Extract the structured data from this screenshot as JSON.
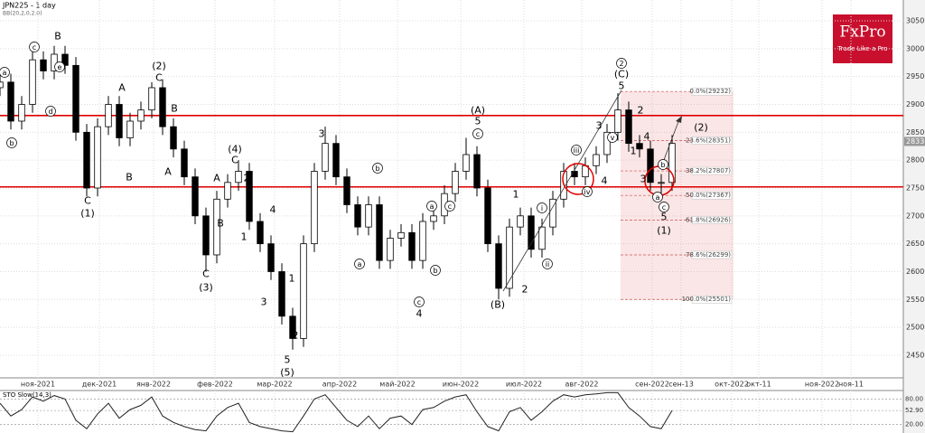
{
  "chart_data": {
    "type": "candlestick",
    "title": "JPN225 - 1 day",
    "indicator": "BB(20,2,0,2.0)",
    "x": [
      0,
      3,
      6,
      9,
      12,
      15,
      18,
      21,
      24,
      27,
      30,
      33,
      36,
      39,
      42,
      45,
      48,
      51,
      54,
      57,
      60,
      63,
      66,
      69,
      72,
      75,
      78,
      81,
      84,
      87,
      90,
      93,
      96,
      99,
      102,
      105,
      108,
      111,
      114,
      117,
      120,
      123,
      126,
      129,
      132,
      135,
      138,
      141,
      144,
      147,
      150,
      153,
      156,
      159,
      162,
      165,
      168,
      171,
      174,
      177,
      180,
      183,
      186
    ],
    "open": [
      29300,
      29400,
      28700,
      29000,
      29800,
      29600,
      29900,
      29700,
      28500,
      27500,
      28600,
      29000,
      28400,
      28700,
      28900,
      29300,
      28600,
      28200,
      27700,
      27000,
      26300,
      27300,
      27600,
      27800,
      26900,
      26500,
      26000,
      25200,
      24800,
      26500,
      27800,
      28300,
      27700,
      27200,
      26800,
      27200,
      26200,
      26600,
      26700,
      26200,
      26900,
      27000,
      27400,
      27800,
      28100,
      27500,
      26500,
      25700,
      26800,
      27000,
      26400,
      26800,
      27300,
      27800,
      27700,
      27900,
      28100,
      28500,
      28900,
      28300,
      28200,
      27600,
      27600
    ],
    "high": [
      29550,
      29550,
      29150,
      30000,
      29950,
      30050,
      30050,
      29850,
      28650,
      28750,
      29150,
      29150,
      28850,
      29050,
      29400,
      29450,
      28750,
      28350,
      27850,
      27150,
      27450,
      27750,
      28000,
      27950,
      27050,
      26650,
      26150,
      25350,
      26650,
      27950,
      28600,
      28450,
      27850,
      27350,
      27350,
      27350,
      26750,
      26850,
      26850,
      27050,
      27150,
      27550,
      27950,
      28400,
      28250,
      27650,
      26650,
      26950,
      27150,
      27150,
      26950,
      27450,
      27950,
      27950,
      28050,
      28250,
      28650,
      29200,
      29050,
      28450,
      28350,
      27750,
      28450
    ],
    "low": [
      29150,
      28550,
      28550,
      28850,
      29450,
      29450,
      29550,
      28350,
      27350,
      27350,
      28450,
      28250,
      28250,
      28550,
      28750,
      28450,
      28050,
      27550,
      26850,
      26000,
      26150,
      27150,
      27450,
      26750,
      26350,
      25850,
      25050,
      24600,
      24650,
      26350,
      27650,
      27550,
      27050,
      26650,
      26650,
      26050,
      26050,
      26450,
      26050,
      26050,
      26750,
      26850,
      27250,
      27650,
      27350,
      26350,
      25500,
      25550,
      26650,
      26250,
      26250,
      26650,
      27150,
      27550,
      27550,
      27750,
      27950,
      28350,
      28150,
      28050,
      27450,
      27350,
      27450
    ],
    "close": [
      29400,
      28700,
      29000,
      29800,
      29600,
      29900,
      29700,
      28500,
      27500,
      28600,
      29000,
      28400,
      28700,
      28900,
      29300,
      28600,
      28200,
      27700,
      27000,
      26300,
      27300,
      27600,
      27800,
      26900,
      26500,
      26000,
      25200,
      24800,
      26500,
      27800,
      28300,
      27700,
      27200,
      26800,
      27200,
      26200,
      26600,
      26700,
      26200,
      26900,
      27000,
      27400,
      27800,
      28100,
      27500,
      26500,
      25700,
      26800,
      27000,
      26400,
      26800,
      27300,
      27800,
      27700,
      27900,
      28100,
      28500,
      28900,
      28300,
      28200,
      27600,
      27600,
      28300
    ],
    "xlim": [
      0,
      250
    ],
    "xticks": [
      {
        "value": 10.5,
        "label": "ноя-2021"
      },
      {
        "value": 27.5,
        "label": "дек-2021"
      },
      {
        "value": 42.5,
        "label": "янв-2022"
      },
      {
        "value": 59.5,
        "label": "фев-2022"
      },
      {
        "value": 76,
        "label": "мар-2022"
      },
      {
        "value": 94,
        "label": "апр-2022"
      },
      {
        "value": 110,
        "label": "май-2022"
      },
      {
        "value": 127.5,
        "label": "июн-2022"
      },
      {
        "value": 145,
        "label": "июл-2022"
      },
      {
        "value": 161,
        "label": "авг-2022"
      },
      {
        "value": 180.5,
        "label": "сен-2022"
      },
      {
        "value": 188.5,
        "label": "сен-13"
      },
      {
        "value": 202.5,
        "label": "окт-2022"
      },
      {
        "value": 210,
        "label": "окт-11"
      },
      {
        "value": 227.5,
        "label": "ноя-2022"
      },
      {
        "value": 235.5,
        "label": "ноя-11"
      }
    ],
    "ylim": [
      24094,
      30873
    ],
    "yticks": [
      24500,
      25000,
      25500,
      26000,
      26500,
      27000,
      27500,
      28000,
      28500,
      29000,
      29500,
      30000,
      30500
    ],
    "grid": true,
    "up_color": "#ffffff",
    "down_color": "#000000",
    "current_price": 28335,
    "levels": [
      28800,
      27520
    ],
    "level_color": "#e00000",
    "fib": {
      "x": [
        171.75,
        203
      ],
      "levels": [
        {
          "value": 29232,
          "label": "0.0%(29232)"
        },
        {
          "value": 28351,
          "label": "23.6%(28351)"
        },
        {
          "value": 27807,
          "label": "38.2%(27807)"
        },
        {
          "value": 27367,
          "label": "50.0%(27367)"
        },
        {
          "value": 26926,
          "label": "61.8%(26926)"
        },
        {
          "value": 26299,
          "label": "78.6%(26299)"
        },
        {
          "value": 25501,
          "label": "100.0%(25501)"
        }
      ]
    },
    "annotations": [
      "a",
      "b",
      "c",
      "B",
      "e",
      "d",
      "C",
      "(1)",
      "A",
      "B",
      "(2)",
      "C",
      "B",
      "A",
      "A",
      "B",
      "C",
      "(3)",
      "(4)",
      "C",
      "2",
      "1",
      "4",
      "3",
      "1",
      "2",
      "5",
      "(5)",
      "3",
      "a",
      "b",
      "a",
      "b",
      "c",
      "4",
      "c",
      "(A)",
      "5",
      "c",
      "1",
      "2",
      "(B)",
      "i",
      "ii",
      "iii",
      "iv",
      "v",
      "3",
      "4",
      "2",
      "(C)",
      "5",
      "2",
      "4",
      "1",
      "3",
      "a",
      "b",
      "c",
      "5",
      "(1)",
      "(2)"
    ],
    "stochastic": {
      "label": "STO Slow(14,3)",
      "values": [
        70,
        40,
        55,
        85,
        75,
        88,
        80,
        30,
        10,
        45,
        70,
        35,
        55,
        65,
        85,
        40,
        25,
        15,
        8,
        5,
        40,
        60,
        70,
        25,
        15,
        10,
        5,
        3,
        40,
        80,
        90,
        60,
        30,
        15,
        40,
        10,
        35,
        40,
        20,
        55,
        60,
        75,
        85,
        90,
        50,
        15,
        5,
        50,
        60,
        30,
        50,
        75,
        90,
        85,
        90,
        92,
        95,
        95,
        60,
        40,
        15,
        10,
        53
      ],
      "ylim": [
        0,
        100
      ],
      "yticks": [
        {
          "value": 80,
          "label": "80.00"
        },
        {
          "value": 52.9,
          "label": "52.90"
        },
        {
          "value": 20,
          "label": "20.00"
        }
      ]
    }
  },
  "logo": {
    "name": "FxPro",
    "tagline": "Trade Like a Pro"
  }
}
